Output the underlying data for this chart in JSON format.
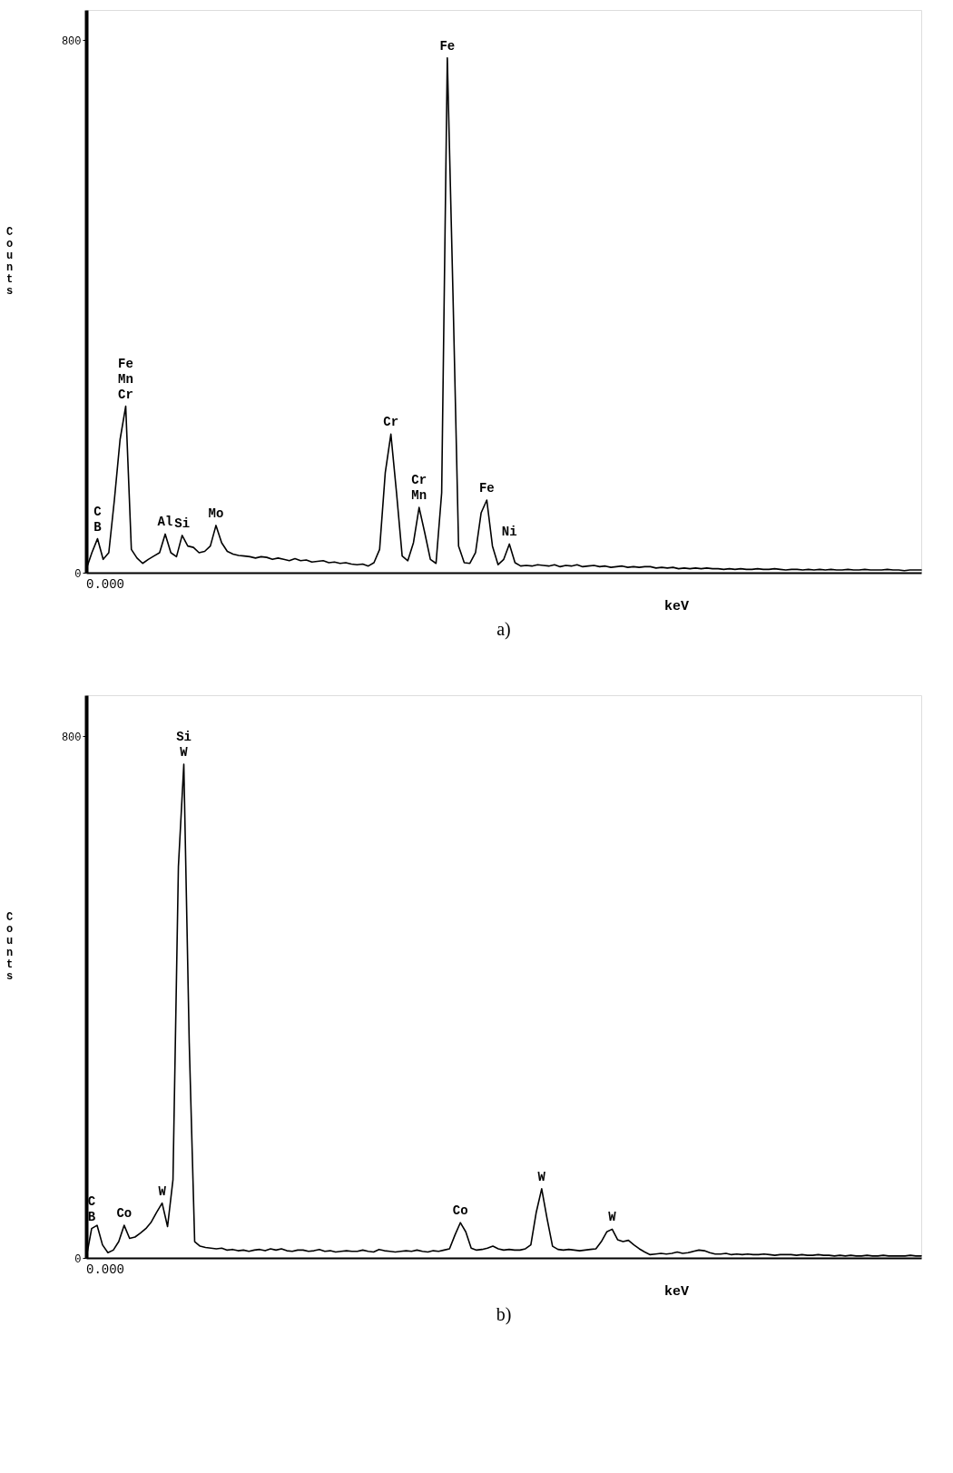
{
  "chart_data": [
    {
      "type": "line",
      "xlabel": "keV",
      "ylabel": "Counts",
      "ylim": [
        0,
        845
      ],
      "yticks": [
        0,
        800
      ],
      "grid": false,
      "marker": "none",
      "line_style": "solid",
      "categories": [
        null,
        null,
        null,
        null,
        null,
        null,
        null,
        null,
        null,
        null,
        null,
        null,
        null,
        null,
        null,
        null,
        null,
        null,
        null,
        null,
        null,
        null,
        null,
        null,
        null,
        null,
        null,
        null,
        null,
        null,
        null,
        null,
        null,
        null,
        null,
        null,
        null,
        null,
        null,
        null,
        null,
        null,
        null,
        null,
        null,
        null,
        null,
        null,
        null,
        null,
        null,
        null,
        null,
        null,
        null,
        null,
        null,
        null,
        null,
        null,
        null,
        null,
        null,
        null,
        null,
        null,
        null,
        null,
        null,
        null,
        null,
        null,
        null,
        null,
        null,
        null,
        null,
        null,
        null,
        null,
        null,
        null,
        null,
        null,
        null,
        null,
        null,
        null,
        null,
        null,
        null,
        null,
        null,
        null,
        null,
        null,
        null,
        null,
        null,
        null,
        null,
        null,
        null,
        null,
        null,
        null,
        null,
        null,
        null,
        null,
        null,
        null,
        null,
        null,
        null,
        null,
        null,
        null,
        null,
        null,
        null,
        null,
        null,
        null,
        null,
        null,
        null,
        null,
        null,
        null,
        null,
        null,
        null,
        null,
        null,
        null,
        null,
        null,
        null,
        null,
        null,
        null,
        null,
        null,
        null,
        null,
        null,
        null,
        null
      ],
      "series": [
        {
          "color": "#000000",
          "values": [
            5,
            30,
            51,
            20,
            30,
            110,
            200,
            250,
            35,
            22,
            14,
            20,
            25,
            30,
            58,
            30,
            24,
            56,
            40,
            38,
            30,
            32,
            40,
            71,
            45,
            32,
            28,
            26,
            25,
            24,
            22,
            24,
            23,
            20,
            22,
            20,
            18,
            21,
            18,
            19,
            16,
            17,
            18,
            15,
            16,
            14,
            15,
            13,
            12,
            13,
            10,
            15,
            35,
            150,
            208,
            120,
            25,
            18,
            45,
            98,
            60,
            20,
            14,
            120,
            773,
            420,
            40,
            15,
            14,
            30,
            90,
            109,
            40,
            12,
            20,
            43,
            15,
            10,
            11,
            10,
            12,
            11,
            10,
            12,
            9,
            11,
            10,
            12,
            9,
            10,
            11,
            9,
            10,
            8,
            9,
            10,
            8,
            9,
            8,
            9,
            9,
            7,
            8,
            7,
            8,
            6,
            7,
            6,
            7,
            6,
            7,
            6,
            6,
            5,
            6,
            5,
            6,
            5,
            5,
            6,
            5,
            5,
            6,
            5,
            4,
            5,
            5,
            4,
            5,
            4,
            5,
            4,
            5,
            4,
            4,
            5,
            4,
            4,
            5,
            4,
            4,
            4,
            5,
            4,
            4,
            3,
            4,
            4,
            4
          ],
          "value_labels": [
            null,
            null,
            "C\nB",
            null,
            null,
            null,
            null,
            "Fe\nMn\nCr",
            null,
            null,
            null,
            null,
            null,
            null,
            "Al",
            null,
            null,
            "Si",
            null,
            null,
            null,
            null,
            null,
            "Mo",
            null,
            null,
            null,
            null,
            null,
            null,
            null,
            null,
            null,
            null,
            null,
            null,
            null,
            null,
            null,
            null,
            null,
            null,
            null,
            null,
            null,
            null,
            null,
            null,
            null,
            null,
            null,
            null,
            null,
            null,
            "Cr",
            null,
            null,
            null,
            null,
            "Cr\nMn",
            null,
            null,
            null,
            null,
            "Fe",
            null,
            null,
            null,
            null,
            null,
            null,
            "Fe",
            null,
            null,
            null,
            "Ni",
            null,
            null,
            null,
            null,
            null,
            null,
            null,
            null,
            null,
            null,
            null,
            null,
            null,
            null,
            null,
            null,
            null,
            null,
            null,
            null,
            null,
            null,
            null,
            null,
            null,
            null,
            null,
            null,
            null,
            null,
            null,
            null,
            null,
            null,
            null,
            null,
            null,
            null,
            null,
            null,
            null,
            null,
            null,
            null,
            null,
            null,
            null,
            null,
            null,
            null,
            null,
            null,
            null,
            null,
            null,
            null,
            null,
            null,
            null,
            null,
            null,
            null,
            null,
            null,
            null,
            null,
            null,
            null,
            null,
            null,
            null,
            null,
            null
          ]
        }
      ],
      "annotations": [
        "0.000",
        "a)"
      ]
    },
    {
      "type": "line",
      "xlabel": "keV",
      "ylabel": "Counts",
      "ylim": [
        0,
        863
      ],
      "yticks": [
        0,
        800
      ],
      "grid": false,
      "marker": "none",
      "line_style": "solid",
      "categories": [
        null,
        null,
        null,
        null,
        null,
        null,
        null,
        null,
        null,
        null,
        null,
        null,
        null,
        null,
        null,
        null,
        null,
        null,
        null,
        null,
        null,
        null,
        null,
        null,
        null,
        null,
        null,
        null,
        null,
        null,
        null,
        null,
        null,
        null,
        null,
        null,
        null,
        null,
        null,
        null,
        null,
        null,
        null,
        null,
        null,
        null,
        null,
        null,
        null,
        null,
        null,
        null,
        null,
        null,
        null,
        null,
        null,
        null,
        null,
        null,
        null,
        null,
        null,
        null,
        null,
        null,
        null,
        null,
        null,
        null,
        null,
        null,
        null,
        null,
        null,
        null,
        null,
        null,
        null,
        null,
        null,
        null,
        null,
        null,
        null,
        null,
        null,
        null,
        null,
        null,
        null,
        null,
        null,
        null,
        null,
        null,
        null,
        null,
        null,
        null,
        null,
        null,
        null,
        null,
        null,
        null,
        null,
        null,
        null,
        null,
        null,
        null,
        null,
        null,
        null,
        null,
        null,
        null,
        null,
        null,
        null,
        null,
        null,
        null,
        null,
        null,
        null,
        null,
        null,
        null,
        null,
        null,
        null,
        null,
        null,
        null,
        null,
        null,
        null,
        null,
        null,
        null,
        null,
        null,
        null,
        null,
        null,
        null,
        null,
        null,
        null,
        null,
        null,
        null,
        null
      ],
      "series": [
        {
          "color": "#000000",
          "values": [
            0,
            45,
            50,
            20,
            8,
            12,
            25,
            50,
            30,
            32,
            38,
            45,
            55,
            70,
            84,
            48,
            120,
            600,
            757,
            330,
            25,
            18,
            16,
            15,
            14,
            15,
            12,
            13,
            11,
            12,
            10,
            12,
            13,
            11,
            14,
            12,
            14,
            11,
            10,
            12,
            12,
            10,
            11,
            13,
            10,
            11,
            9,
            10,
            11,
            10,
            10,
            12,
            10,
            9,
            13,
            11,
            10,
            9,
            10,
            11,
            10,
            12,
            10,
            9,
            11,
            10,
            12,
            14,
            35,
            54,
            40,
            15,
            12,
            13,
            15,
            18,
            14,
            12,
            13,
            12,
            12,
            14,
            20,
            70,
            106,
            60,
            18,
            13,
            12,
            13,
            12,
            11,
            12,
            13,
            14,
            25,
            40,
            44,
            28,
            25,
            27,
            20,
            14,
            9,
            5,
            6,
            7,
            6,
            7,
            9,
            7,
            8,
            10,
            12,
            11,
            8,
            6,
            6,
            7,
            5,
            6,
            5,
            6,
            5,
            5,
            6,
            5,
            4,
            5,
            5,
            5,
            4,
            5,
            4,
            4,
            5,
            4,
            4,
            3,
            4,
            3,
            4,
            3,
            3,
            4,
            3,
            3,
            4,
            3,
            3,
            3,
            3,
            4,
            3,
            3
          ],
          "value_labels": [
            null,
            "C\nB",
            null,
            null,
            null,
            null,
            null,
            "Co",
            null,
            null,
            null,
            null,
            null,
            null,
            "W",
            null,
            null,
            null,
            "Si\nW",
            null,
            null,
            null,
            null,
            null,
            null,
            null,
            null,
            null,
            null,
            null,
            null,
            null,
            null,
            null,
            null,
            null,
            null,
            null,
            null,
            null,
            null,
            null,
            null,
            null,
            null,
            null,
            null,
            null,
            null,
            null,
            null,
            null,
            null,
            null,
            null,
            null,
            null,
            null,
            null,
            null,
            null,
            null,
            null,
            null,
            null,
            null,
            null,
            null,
            null,
            "Co",
            null,
            null,
            null,
            null,
            null,
            null,
            null,
            null,
            null,
            null,
            null,
            null,
            null,
            null,
            "W",
            null,
            null,
            null,
            null,
            null,
            null,
            null,
            null,
            null,
            null,
            null,
            null,
            "W",
            null,
            null,
            null,
            null,
            null,
            null,
            null,
            null,
            null,
            null,
            null,
            null,
            null,
            null,
            null,
            null,
            null,
            null,
            null,
            null,
            null,
            null,
            null,
            null,
            null,
            null,
            null,
            null,
            null,
            null,
            null,
            null,
            null,
            null,
            null,
            null,
            null,
            null,
            null,
            null,
            null,
            null,
            null,
            null,
            null,
            null,
            null,
            null,
            null,
            null,
            null,
            null,
            null,
            null,
            null,
            null,
            null
          ]
        }
      ],
      "annotations": [
        "0.000",
        "b)"
      ]
    }
  ]
}
